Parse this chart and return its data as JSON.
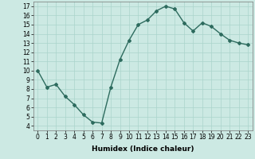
{
  "x": [
    0,
    1,
    2,
    3,
    4,
    5,
    6,
    7,
    8,
    9,
    10,
    11,
    12,
    13,
    14,
    15,
    16,
    17,
    18,
    19,
    20,
    21,
    22,
    23
  ],
  "y": [
    10,
    8.2,
    8.5,
    7.2,
    6.3,
    5.2,
    4.4,
    4.3,
    8.2,
    11.2,
    13.3,
    15.0,
    15.5,
    16.5,
    17.0,
    16.7,
    15.2,
    14.3,
    15.2,
    14.8,
    14.0,
    13.3,
    13.0,
    12.8
  ],
  "line_color": "#2d6b5e",
  "marker": "D",
  "markersize": 2,
  "bg_color": "#cce9e3",
  "grid_color": "#aad4cc",
  "xlabel": "Humidex (Indice chaleur)",
  "ylim": [
    3.5,
    17.5
  ],
  "xlim": [
    -0.5,
    23.5
  ],
  "yticks": [
    4,
    5,
    6,
    7,
    8,
    9,
    10,
    11,
    12,
    13,
    14,
    15,
    16,
    17
  ],
  "xticks": [
    0,
    1,
    2,
    3,
    4,
    5,
    6,
    7,
    8,
    9,
    10,
    11,
    12,
    13,
    14,
    15,
    16,
    17,
    18,
    19,
    20,
    21,
    22,
    23
  ],
  "tick_fontsize": 5.5,
  "label_fontsize": 6.5,
  "linewidth": 1.0
}
